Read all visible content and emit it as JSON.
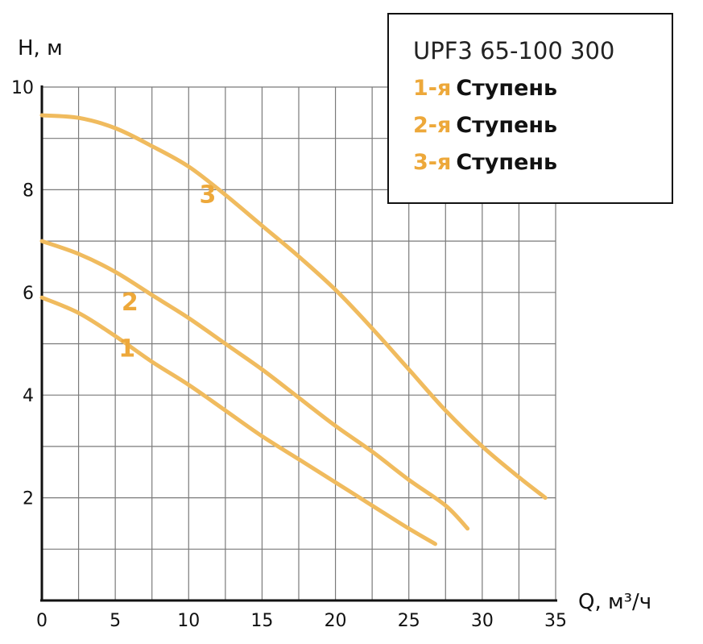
{
  "chart_data": {
    "type": "line",
    "title": "UPF3 65-100 300",
    "xlabel": "Q, м³/ч",
    "ylabel": "H, м",
    "xlim": [
      0,
      35
    ],
    "ylim": [
      0,
      10
    ],
    "x_ticks": [
      "0",
      "5",
      "10",
      "15",
      "20",
      "25",
      "30",
      "35"
    ],
    "y_ticks": [
      "2",
      "4",
      "6",
      "8",
      "10"
    ],
    "x_tick_values": [
      0,
      5,
      10,
      15,
      20,
      25,
      30,
      35
    ],
    "y_tick_values": [
      2,
      4,
      6,
      8,
      10
    ],
    "grid": true,
    "legend_position": "top-right",
    "series": [
      {
        "label_num": "1-я",
        "label_text": "Ступень",
        "curve_label": "1",
        "x": [
          0,
          2.5,
          5,
          7.5,
          10,
          12.5,
          15,
          17.5,
          20,
          22.5,
          25,
          26.8
        ],
        "y": [
          5.9,
          5.6,
          5.15,
          4.65,
          4.2,
          3.7,
          3.2,
          2.75,
          2.3,
          1.85,
          1.4,
          1.1
        ]
      },
      {
        "label_num": "2-я",
        "label_text": "Ступень",
        "curve_label": "2",
        "x": [
          0,
          2.5,
          5,
          7.5,
          10,
          12.5,
          15,
          17.5,
          20,
          22.5,
          25,
          27.5,
          29
        ],
        "y": [
          7.0,
          6.75,
          6.4,
          5.95,
          5.5,
          5.0,
          4.5,
          3.95,
          3.4,
          2.9,
          2.35,
          1.85,
          1.4
        ]
      },
      {
        "label_num": "3-я",
        "label_text": "Ступень",
        "curve_label": "3",
        "x": [
          0,
          2.5,
          5,
          7.5,
          10,
          12.5,
          15,
          17.5,
          20,
          22.5,
          25,
          27.5,
          30,
          32.5,
          34.3
        ],
        "y": [
          9.45,
          9.4,
          9.2,
          8.85,
          8.45,
          7.9,
          7.3,
          6.7,
          6.05,
          5.3,
          4.5,
          3.7,
          3.0,
          2.4,
          2.0
        ]
      }
    ],
    "colors": {
      "curve": "#f0bb5e",
      "label_num": "#eda83a",
      "grid": "#7a7a7a",
      "axis": "#111111"
    }
  }
}
